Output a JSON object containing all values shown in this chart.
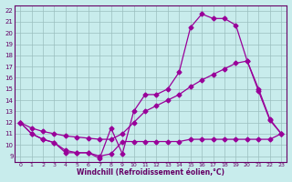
{
  "xlabel": "Windchill (Refroidissement éolien,°C)",
  "background_color": "#c8ecec",
  "grid_color": "#b0d0d0",
  "line_color": "#990099",
  "xlim": [
    -0.5,
    23.5
  ],
  "ylim": [
    8.5,
    22.5
  ],
  "xticks": [
    0,
    1,
    2,
    3,
    4,
    5,
    6,
    7,
    8,
    9,
    10,
    11,
    12,
    13,
    14,
    15,
    16,
    17,
    18,
    19,
    20,
    21,
    22,
    23
  ],
  "yticks": [
    9,
    10,
    11,
    12,
    13,
    14,
    15,
    16,
    17,
    18,
    19,
    20,
    21,
    22
  ],
  "series_spiky_x": [
    0,
    1,
    2,
    3,
    4,
    5,
    6,
    7,
    8,
    9,
    10,
    11,
    12,
    13,
    14,
    15,
    16,
    17,
    18,
    19,
    20,
    21,
    22,
    23
  ],
  "series_spiky_y": [
    12.0,
    11.0,
    10.5,
    10.2,
    9.3,
    9.3,
    9.3,
    8.8,
    11.5,
    9.2,
    13.0,
    14.5,
    14.5,
    15.0,
    16.5,
    20.5,
    21.7,
    21.3,
    21.3,
    20.7,
    17.5,
    15.0,
    12.3,
    11.0
  ],
  "series_diag_x": [
    0,
    1,
    2,
    3,
    4,
    5,
    6,
    7,
    8,
    9,
    10,
    11,
    12,
    13,
    14,
    15,
    16,
    17,
    18,
    19,
    20,
    21,
    22,
    23
  ],
  "series_diag_y": [
    12.0,
    11.5,
    11.2,
    11.0,
    10.8,
    10.7,
    10.6,
    10.5,
    10.5,
    11.0,
    12.0,
    13.0,
    13.5,
    14.0,
    14.5,
    15.2,
    15.8,
    16.3,
    16.8,
    17.3,
    17.5,
    14.8,
    12.2,
    11.0
  ],
  "series_flat_x": [
    0,
    1,
    2,
    3,
    4,
    5,
    6,
    7,
    8,
    9,
    10,
    11,
    12,
    13,
    14,
    15,
    16,
    17,
    18,
    19,
    20,
    21,
    22,
    23
  ],
  "series_flat_y": [
    12.0,
    11.0,
    10.5,
    10.2,
    9.5,
    9.3,
    9.3,
    9.0,
    9.2,
    10.3,
    10.3,
    10.3,
    10.3,
    10.3,
    10.3,
    10.5,
    10.5,
    10.5,
    10.5,
    10.5,
    10.5,
    10.5,
    10.5,
    11.0
  ]
}
